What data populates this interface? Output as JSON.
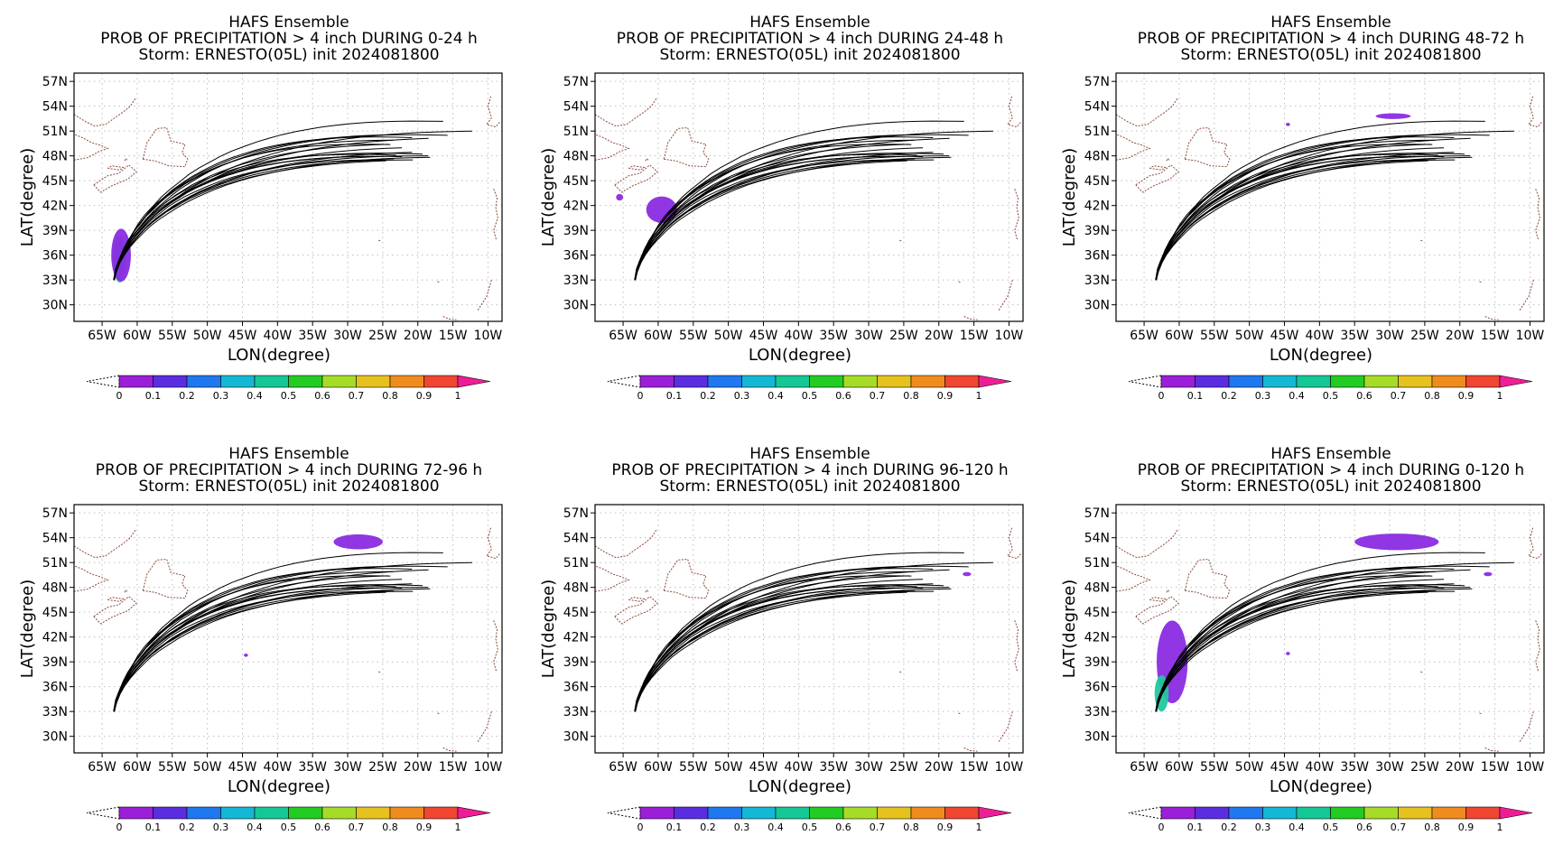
{
  "panels": [
    {
      "title1": "HAFS Ensemble",
      "title2": "PROB OF PRECIPITATION > 4 inch DURING  0-24 h",
      "title3": "Storm: ERNESTO(05L) init 2024081800",
      "blobs": [
        {
          "lon": -62.5,
          "lat": 35.5,
          "rx": 1.0,
          "ry": 2.8,
          "color": "#22c7a0"
        },
        {
          "lon": -62.3,
          "lat": 36.0,
          "rx": 1.4,
          "ry": 3.2,
          "color": "#8a2be2"
        }
      ]
    },
    {
      "title1": "HAFS Ensemble",
      "title2": "PROB OF PRECIPITATION > 4 inch DURING 24-48 h",
      "title3": "Storm: ERNESTO(05L) init 2024081800",
      "blobs": [
        {
          "lon": -59.5,
          "lat": 41.5,
          "rx": 2.2,
          "ry": 1.6,
          "color": "#8a2be2"
        },
        {
          "lon": -65.5,
          "lat": 43.0,
          "rx": 0.5,
          "ry": 0.4,
          "color": "#8a2be2"
        }
      ]
    },
    {
      "title1": "HAFS Ensemble",
      "title2": "PROB OF PRECIPITATION > 4 inch DURING 48-72 h",
      "title3": "Storm: ERNESTO(05L) init 2024081800",
      "blobs": [
        {
          "lon": -29.5,
          "lat": 52.8,
          "rx": 2.5,
          "ry": 0.35,
          "color": "#8a2be2"
        },
        {
          "lon": -44.5,
          "lat": 51.8,
          "rx": 0.3,
          "ry": 0.2,
          "color": "#8a2be2"
        }
      ]
    },
    {
      "title1": "HAFS Ensemble",
      "title2": "PROB OF PRECIPITATION > 4 inch DURING 72-96 h",
      "title3": "Storm: ERNESTO(05L) init 2024081800",
      "blobs": [
        {
          "lon": -28.5,
          "lat": 53.5,
          "rx": 3.5,
          "ry": 0.9,
          "color": "#8a2be2"
        },
        {
          "lon": -44.5,
          "lat": 39.8,
          "rx": 0.3,
          "ry": 0.2,
          "color": "#8a2be2"
        }
      ]
    },
    {
      "title1": "HAFS Ensemble",
      "title2": "PROB OF PRECIPITATION > 4 inch DURING 96-120 h",
      "title3": "Storm: ERNESTO(05L) init 2024081800",
      "blobs": [
        {
          "lon": -16.0,
          "lat": 49.6,
          "rx": 0.6,
          "ry": 0.25,
          "color": "#8a2be2"
        }
      ]
    },
    {
      "title1": "HAFS Ensemble",
      "title2": "PROB OF PRECIPITATION > 4 inch DURING 0-120 h",
      "title3": "Storm: ERNESTO(05L) init 2024081800",
      "blobs": [
        {
          "lon": -61.0,
          "lat": 39.0,
          "rx": 2.2,
          "ry": 5.0,
          "color": "#8a2be2"
        },
        {
          "lon": -62.5,
          "lat": 35.2,
          "rx": 1.0,
          "ry": 2.2,
          "color": "#22c7a0"
        },
        {
          "lon": -29.0,
          "lat": 53.5,
          "rx": 6.0,
          "ry": 1.0,
          "color": "#8a2be2"
        },
        {
          "lon": -44.5,
          "lat": 40.0,
          "rx": 0.3,
          "ry": 0.2,
          "color": "#8a2be2"
        },
        {
          "lon": -16.0,
          "lat": 49.6,
          "rx": 0.6,
          "ry": 0.25,
          "color": "#8a2be2"
        }
      ]
    }
  ],
  "map": {
    "lon_range": [
      -69,
      -8
    ],
    "lat_range": [
      28,
      58
    ],
    "lon_ticks": [
      -65,
      -60,
      -55,
      -50,
      -45,
      -40,
      -35,
      -30,
      -25,
      -20,
      -15,
      -10
    ],
    "lon_tick_labels": [
      "65W",
      "60W",
      "55W",
      "50W",
      "45W",
      "40W",
      "35W",
      "30W",
      "25W",
      "20W",
      "15W",
      "10W"
    ],
    "lat_ticks": [
      30,
      33,
      36,
      39,
      42,
      45,
      48,
      51,
      54,
      57
    ],
    "lat_tick_labels": [
      "30N",
      "33N",
      "36N",
      "39N",
      "42N",
      "45N",
      "48N",
      "51N",
      "54N",
      "57N"
    ],
    "xlabel": "LON(degree)",
    "ylabel": "LAT(degree)",
    "grid": true,
    "grid_style": "dotted",
    "coast_color": "#8b4a3c",
    "track_color": "#000000"
  },
  "colorbar": {
    "ticks": [
      "0",
      "0.1",
      "0.2",
      "0.3",
      "0.4",
      "0.5",
      "0.6",
      "0.7",
      "0.8",
      "0.9",
      "1"
    ],
    "colors": [
      "#9b1fd8",
      "#5a2ee0",
      "#1f78f0",
      "#14b8d4",
      "#14c896",
      "#22cc22",
      "#a6dc28",
      "#e6c21e",
      "#f08c1e",
      "#f04632"
    ],
    "over_color": "#f01e96"
  }
}
